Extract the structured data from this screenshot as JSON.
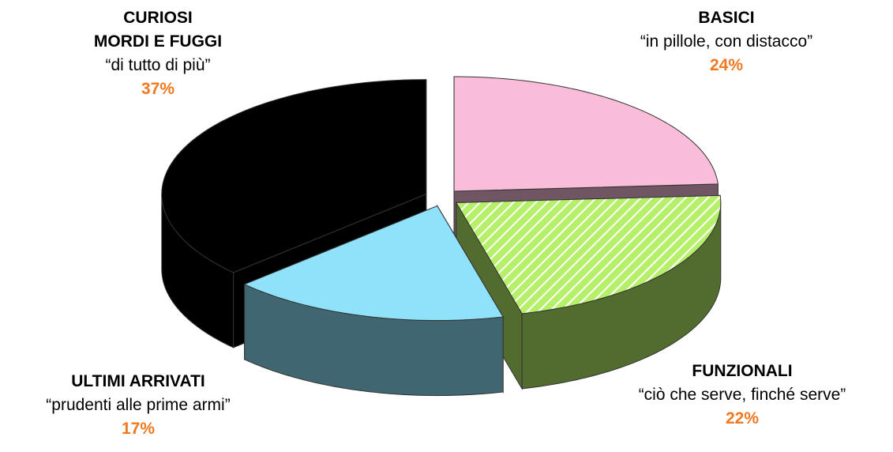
{
  "chart_data": {
    "type": "pie",
    "categories": [
      "BASICI",
      "FUNZIONALI",
      "ULTIMI ARRIVATI",
      "CURIOSI\nMORDI E FUGGI"
    ],
    "descriptions": [
      "“in pillole, con distacco”",
      "“ciò che serve, finché serve”",
      "“prudenti alle prime armi”",
      "“di tutto di più”"
    ],
    "values": [
      24,
      22,
      17,
      37
    ],
    "value_labels": [
      "24%",
      "22%",
      "17%",
      "37%"
    ],
    "colors": [
      "#f9bcd9",
      "#b6f06a",
      "#8fe2fa",
      "#000000"
    ],
    "value_label_color": "#f07820"
  }
}
